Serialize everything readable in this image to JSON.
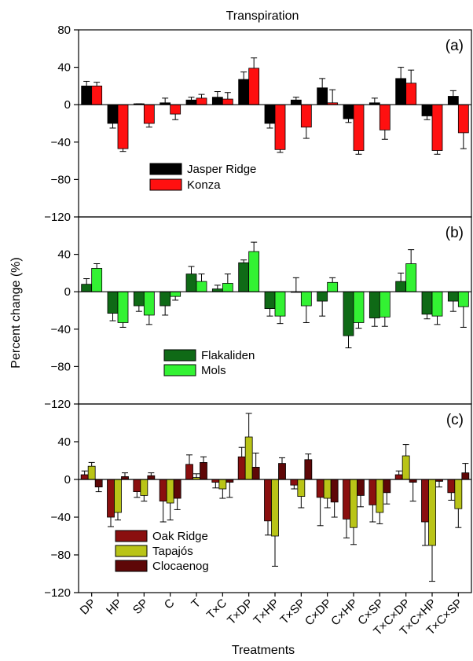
{
  "figure": {
    "title": "Transpiration",
    "ylabel": "Percent change (%)",
    "xlabel": "Treatments"
  },
  "colors": {
    "Jasper Ridge": "#000000",
    "Konza": "#ff1010",
    "Flakaliden": "#0f6a16",
    "Mols": "#33f233",
    "Oak Ridge": "#8a0f0f",
    "Tapajós": "#b9c417",
    "Clocaenog": "#5e0707"
  },
  "chart_data": [
    {
      "type": "bar",
      "panel": "(a)",
      "ylim": [
        -120,
        80
      ],
      "yticks": [
        -120,
        -80,
        -40,
        0,
        40,
        80
      ],
      "yticklabels": [
        "−120",
        "−80",
        "−40",
        "0",
        "40",
        "80"
      ],
      "categories": [
        "DP",
        "HP",
        "SP",
        "C",
        "T",
        "T×C",
        "T×DP",
        "T×HP",
        "T×SP",
        "C×DP",
        "C×HP",
        "C×SP",
        "T×C×DP",
        "T×C×HP",
        "T×C×SP"
      ],
      "legend_position": "lower-left",
      "series": [
        {
          "name": "Jasper Ridge",
          "values": [
            20,
            -20,
            1,
            2,
            5,
            8,
            27,
            -20,
            5,
            18,
            -15,
            2,
            28,
            -12,
            9
          ],
          "errors": [
            5,
            5,
            0,
            5,
            3,
            6,
            8,
            5,
            3,
            10,
            4,
            5,
            12,
            4,
            6
          ]
        },
        {
          "name": "Konza",
          "values": [
            20,
            -47,
            -20,
            -10,
            7,
            6,
            39,
            -48,
            -24,
            2,
            -49,
            -27,
            23,
            -49,
            -30
          ],
          "errors": [
            4,
            3,
            4,
            6,
            4,
            7,
            11,
            3,
            12,
            14,
            4,
            10,
            14,
            4,
            17
          ]
        }
      ]
    },
    {
      "type": "bar",
      "panel": "(b)",
      "ylim": [
        -120,
        80
      ],
      "yticks": [
        -120,
        -80,
        -40,
        0,
        40
      ],
      "yticklabels": [
        "−120",
        "−80",
        "−40",
        "0",
        "40"
      ],
      "categories": [
        "DP",
        "HP",
        "SP",
        "C",
        "T",
        "T×C",
        "T×DP",
        "T×HP",
        "T×SP",
        "C×DP",
        "C×HP",
        "C×SP",
        "T×C×DP",
        "T×C×HP",
        "T×C×SP"
      ],
      "legend_position": "lower-center",
      "series": [
        {
          "name": "Flakaliden",
          "values": [
            8,
            -23,
            -15,
            -15,
            19,
            3,
            31,
            -18,
            0,
            -10,
            -47,
            -28,
            11,
            -24,
            -10
          ],
          "errors": [
            6,
            8,
            6,
            10,
            8,
            4,
            3,
            8,
            15,
            16,
            13,
            9,
            9,
            5,
            11
          ]
        },
        {
          "name": "Mols",
          "values": [
            25,
            -33,
            -25,
            -5,
            11,
            9,
            43,
            -26,
            -15,
            10,
            -33,
            -27,
            30,
            -26,
            -16
          ],
          "errors": [
            5,
            5,
            10,
            4,
            8,
            10,
            10,
            8,
            18,
            5,
            6,
            10,
            15,
            9,
            22
          ]
        }
      ]
    },
    {
      "type": "bar",
      "panel": "(c)",
      "ylim": [
        -120,
        80
      ],
      "yticks": [
        -120,
        -80,
        -40,
        0,
        40
      ],
      "yticklabels": [
        "−120",
        "−80",
        "−40",
        "0",
        "40"
      ],
      "categories": [
        "DP",
        "HP",
        "SP",
        "C",
        "T",
        "T×C",
        "T×DP",
        "T×HP",
        "T×SP",
        "C×DP",
        "C×HP",
        "C×SP",
        "T×C×DP",
        "T×C×HP",
        "T×C×SP"
      ],
      "legend_position": "lower-left",
      "series": [
        {
          "name": "Oak Ridge",
          "values": [
            5,
            -40,
            -13,
            -23,
            16,
            -3,
            24,
            -44,
            -6,
            -19,
            -42,
            -27,
            5,
            -45,
            -14
          ],
          "errors": [
            4,
            10,
            6,
            22,
            10,
            6,
            10,
            15,
            4,
            30,
            20,
            18,
            4,
            25,
            8
          ]
        },
        {
          "name": "Tapajós",
          "values": [
            14,
            -35,
            -17,
            -25,
            2,
            -10,
            45,
            -60,
            -18,
            -20,
            -51,
            -35,
            25,
            -70,
            -31
          ],
          "errors": [
            4,
            8,
            6,
            18,
            4,
            10,
            25,
            32,
            12,
            10,
            18,
            12,
            12,
            38,
            20
          ]
        },
        {
          "name": "Clocaenog",
          "values": [
            -8,
            3,
            4,
            -20,
            18,
            -3,
            13,
            17,
            21,
            -24,
            -17,
            -14,
            -3,
            -2,
            7
          ],
          "errors": [
            5,
            4,
            3,
            12,
            6,
            16,
            15,
            6,
            6,
            16,
            12,
            12,
            20,
            6,
            10
          ]
        }
      ]
    }
  ]
}
